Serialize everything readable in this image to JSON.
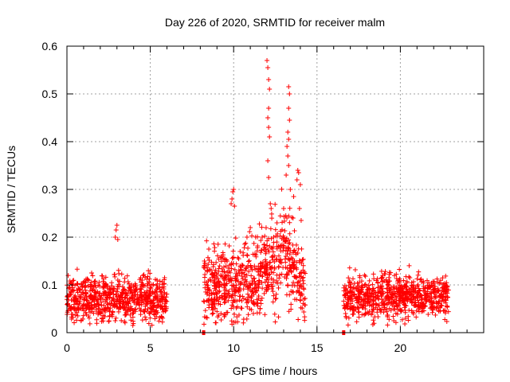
{
  "chart_data": {
    "type": "scatter",
    "title": "Day 226 of 2020, SRMTID for receiver malm",
    "xlabel": "GPS time / hours",
    "ylabel": "SRMTID / TECUs",
    "xlim": [
      0,
      25
    ],
    "ylim": [
      0,
      0.6
    ],
    "xticks": [
      0,
      5,
      10,
      15,
      20
    ],
    "xtick_labels": [
      "0",
      "5",
      "10",
      "15",
      "20"
    ],
    "yticks": [
      0,
      0.1,
      0.2,
      0.3,
      0.4,
      0.5,
      0.6
    ],
    "ytick_labels": [
      "0",
      "0.1",
      "0.2",
      "0.3",
      "0.4",
      "0.5",
      "0.6"
    ],
    "grid": true,
    "marker": "+",
    "color": "#ff0000",
    "zero_markers_x": [
      8.2,
      16.6
    ],
    "series": [
      {
        "name": "SRMTID",
        "segments": [
          {
            "x_start": 0.0,
            "x_end": 6.0,
            "base": 0.07,
            "spread": 0.035
          },
          {
            "x_start": 8.2,
            "x_end": 14.3,
            "base": 0.1,
            "spread": 0.06
          },
          {
            "x_start": 16.6,
            "x_end": 22.9,
            "base": 0.075,
            "spread": 0.035
          }
        ],
        "highlights": [
          {
            "x": 2.9,
            "y": 0.2
          },
          {
            "x": 2.95,
            "y": 0.215
          },
          {
            "x": 3.0,
            "y": 0.225
          },
          {
            "x": 3.05,
            "y": 0.195
          },
          {
            "x": 9.85,
            "y": 0.27
          },
          {
            "x": 9.9,
            "y": 0.28
          },
          {
            "x": 9.95,
            "y": 0.295
          },
          {
            "x": 10.0,
            "y": 0.3
          },
          {
            "x": 10.05,
            "y": 0.265
          },
          {
            "x": 12.0,
            "y": 0.57
          },
          {
            "x": 12.05,
            "y": 0.555
          },
          {
            "x": 12.1,
            "y": 0.53
          },
          {
            "x": 12.15,
            "y": 0.51
          },
          {
            "x": 12.1,
            "y": 0.47
          },
          {
            "x": 12.05,
            "y": 0.45
          },
          {
            "x": 12.1,
            "y": 0.43
          },
          {
            "x": 12.15,
            "y": 0.41
          },
          {
            "x": 12.05,
            "y": 0.36
          },
          {
            "x": 12.1,
            "y": 0.325
          },
          {
            "x": 12.2,
            "y": 0.27
          },
          {
            "x": 12.25,
            "y": 0.26
          },
          {
            "x": 13.3,
            "y": 0.515
          },
          {
            "x": 13.35,
            "y": 0.5
          },
          {
            "x": 13.3,
            "y": 0.47
          },
          {
            "x": 13.35,
            "y": 0.445
          },
          {
            "x": 13.25,
            "y": 0.42
          },
          {
            "x": 13.3,
            "y": 0.405
          },
          {
            "x": 13.2,
            "y": 0.39
          },
          {
            "x": 13.25,
            "y": 0.37
          },
          {
            "x": 13.3,
            "y": 0.35
          },
          {
            "x": 13.15,
            "y": 0.33
          },
          {
            "x": 13.4,
            "y": 0.3
          },
          {
            "x": 13.6,
            "y": 0.285
          },
          {
            "x": 13.8,
            "y": 0.32
          },
          {
            "x": 13.85,
            "y": 0.34
          },
          {
            "x": 13.9,
            "y": 0.335
          },
          {
            "x": 14.0,
            "y": 0.31
          },
          {
            "x": 13.95,
            "y": 0.26
          },
          {
            "x": 14.05,
            "y": 0.235
          },
          {
            "x": 12.6,
            "y": 0.23
          },
          {
            "x": 12.8,
            "y": 0.18
          },
          {
            "x": 12.4,
            "y": 0.2
          },
          {
            "x": 13.0,
            "y": 0.26
          },
          {
            "x": 11.0,
            "y": 0.22
          },
          {
            "x": 10.8,
            "y": 0.2
          }
        ]
      }
    ]
  }
}
